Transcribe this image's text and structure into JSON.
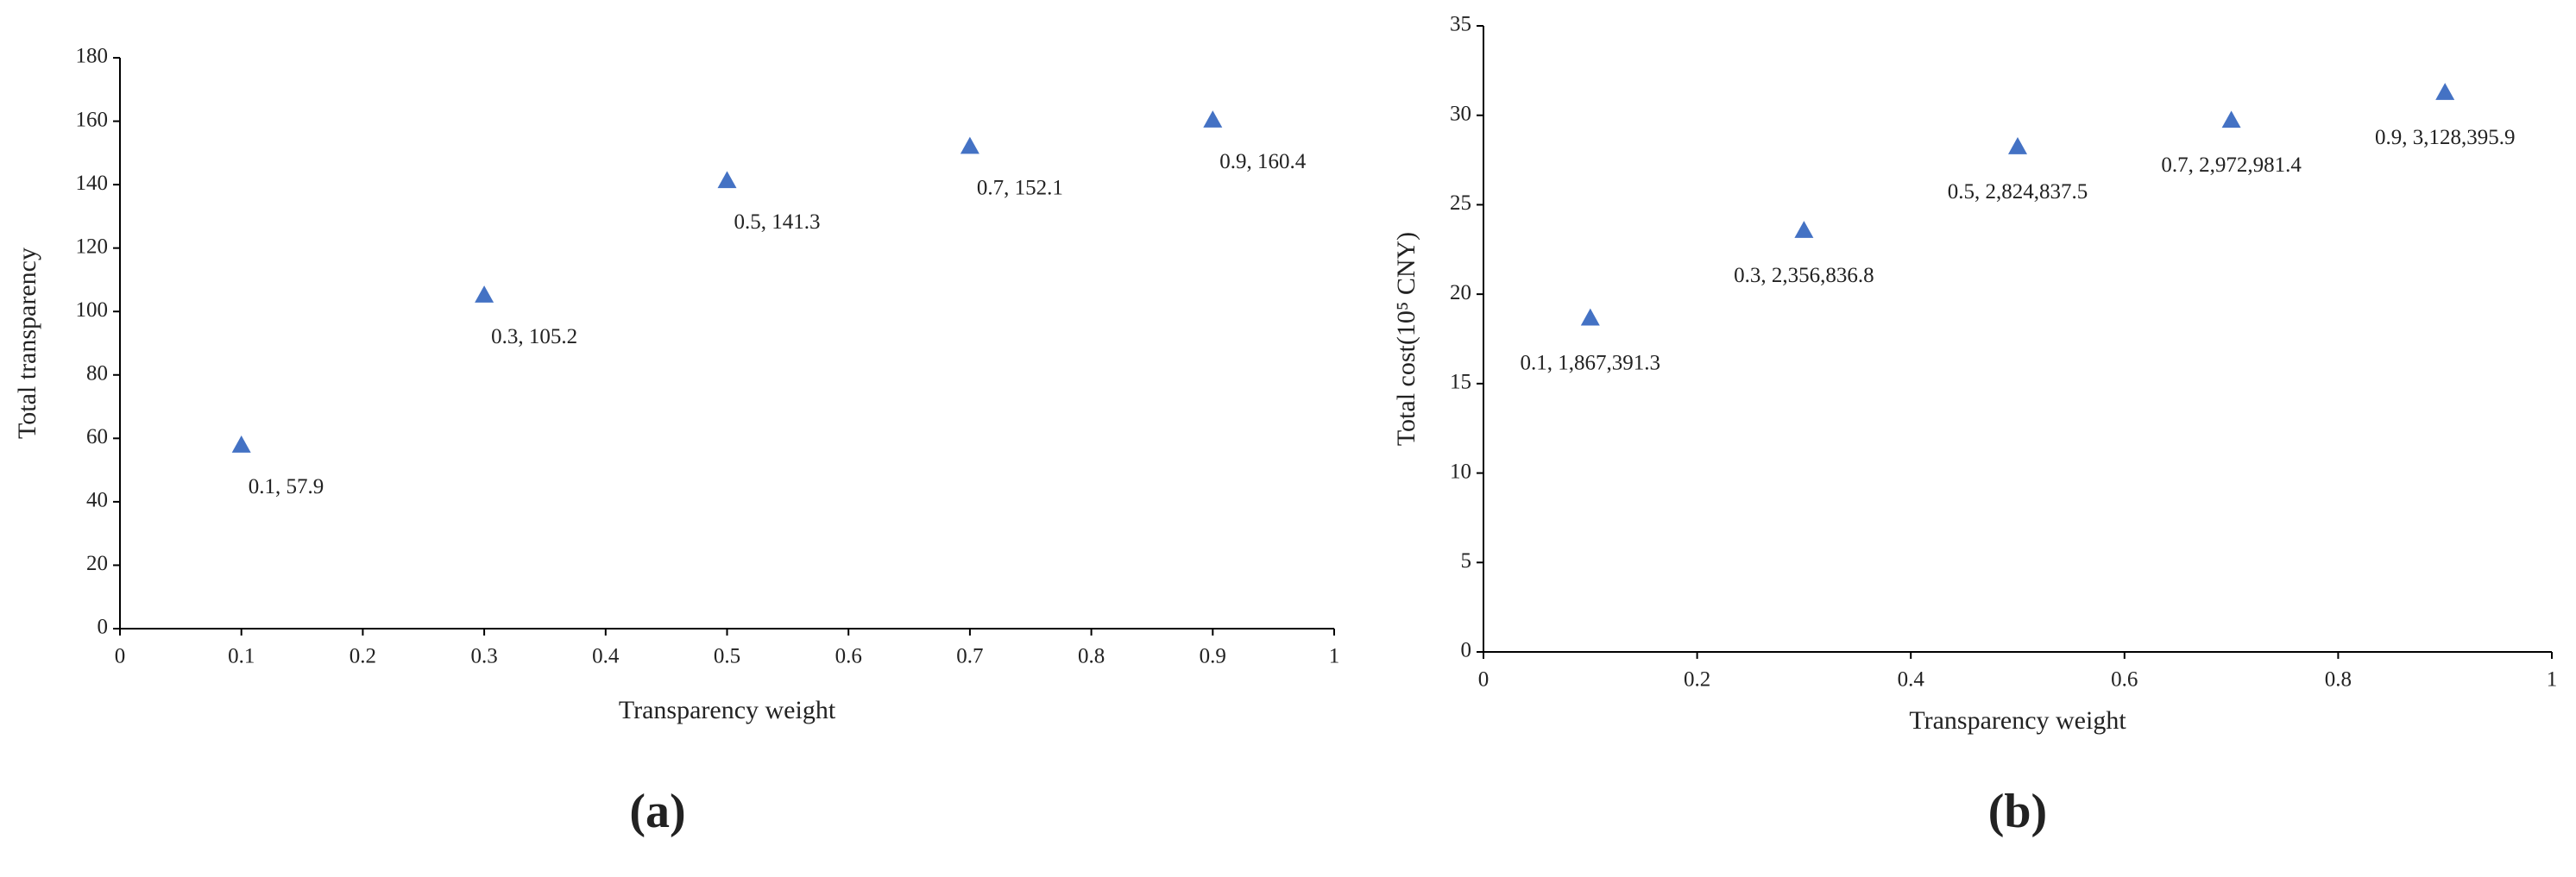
{
  "chart_data": [
    {
      "type": "scatter",
      "caption": "(a)",
      "x_label": "Transparency weight",
      "y_label": "Total transparency",
      "x": [
        0.1,
        0.3,
        0.5,
        0.7,
        0.9
      ],
      "color": "#4472c4",
      "series": [
        {
          "values": [
            57.9,
            105.2,
            141.3,
            152.1,
            160.4
          ],
          "value_labels": [
            "0.1, 57.9",
            "0.3, 105.2",
            "0.5, 141.3",
            "0.7, 152.1",
            "0.9, 160.4"
          ]
        }
      ],
      "xlim": [
        0,
        1
      ],
      "xticks": [
        0,
        0.1,
        0.2,
        0.3,
        0.4,
        0.5,
        0.6,
        0.7,
        0.8,
        0.9,
        1
      ],
      "ylim": [
        0,
        180
      ],
      "yticks": [
        0,
        20,
        40,
        60,
        80,
        100,
        120,
        140,
        160,
        180
      ],
      "grid": false
    },
    {
      "type": "scatter",
      "caption": "(b)",
      "x_label": "Transparency weight",
      "y_label": "Total cost(10⁵ CNY)",
      "x": [
        0.1,
        0.3,
        0.5,
        0.7,
        0.9
      ],
      "color": "#4472c4",
      "series": [
        {
          "values": [
            18.673913,
            23.568368,
            28.248375,
            29.729814,
            31.283959
          ],
          "value_labels": [
            "0.1, 1,867,391.3",
            "0.3, 2,356,836.8",
            "0.5, 2,824,837.5",
            "0.7, 2,972,981.4",
            "0.9, 3,128,395.9"
          ]
        }
      ],
      "xlim": [
        0,
        1
      ],
      "xticks": [
        0,
        0.2,
        0.4,
        0.6,
        0.8,
        1
      ],
      "ylim": [
        0,
        35
      ],
      "yticks": [
        0,
        5,
        10,
        15,
        20,
        25,
        30,
        35
      ],
      "grid": false
    }
  ]
}
